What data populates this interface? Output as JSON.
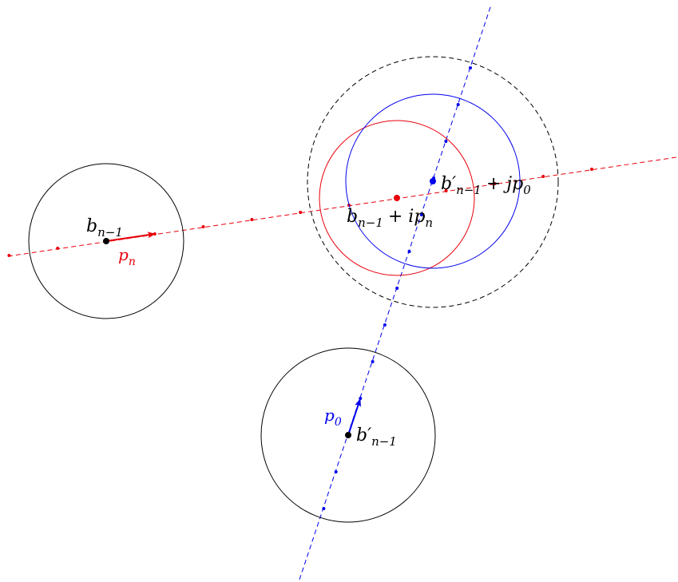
{
  "colors": {
    "black": "#000000",
    "red": "#e8000b",
    "blue": "#0000ee",
    "dashed_black": "#000000"
  },
  "labels": {
    "b_prev": {
      "base": "b",
      "sub": "n−1"
    },
    "p_n": {
      "base": "p",
      "sub": "n"
    },
    "b_prime_prev": {
      "base": "b′",
      "sub": "n−1"
    },
    "p_0": {
      "base": "p",
      "sub": "0"
    },
    "red_center": {
      "base": "b",
      "sub": "n−1",
      "suffix": "+ ip",
      "suffix_sub": "n"
    },
    "blue_center": {
      "base": "b′",
      "sub": "n−1",
      "suffix": "+ jp",
      "suffix_sub": "0"
    }
  }
}
